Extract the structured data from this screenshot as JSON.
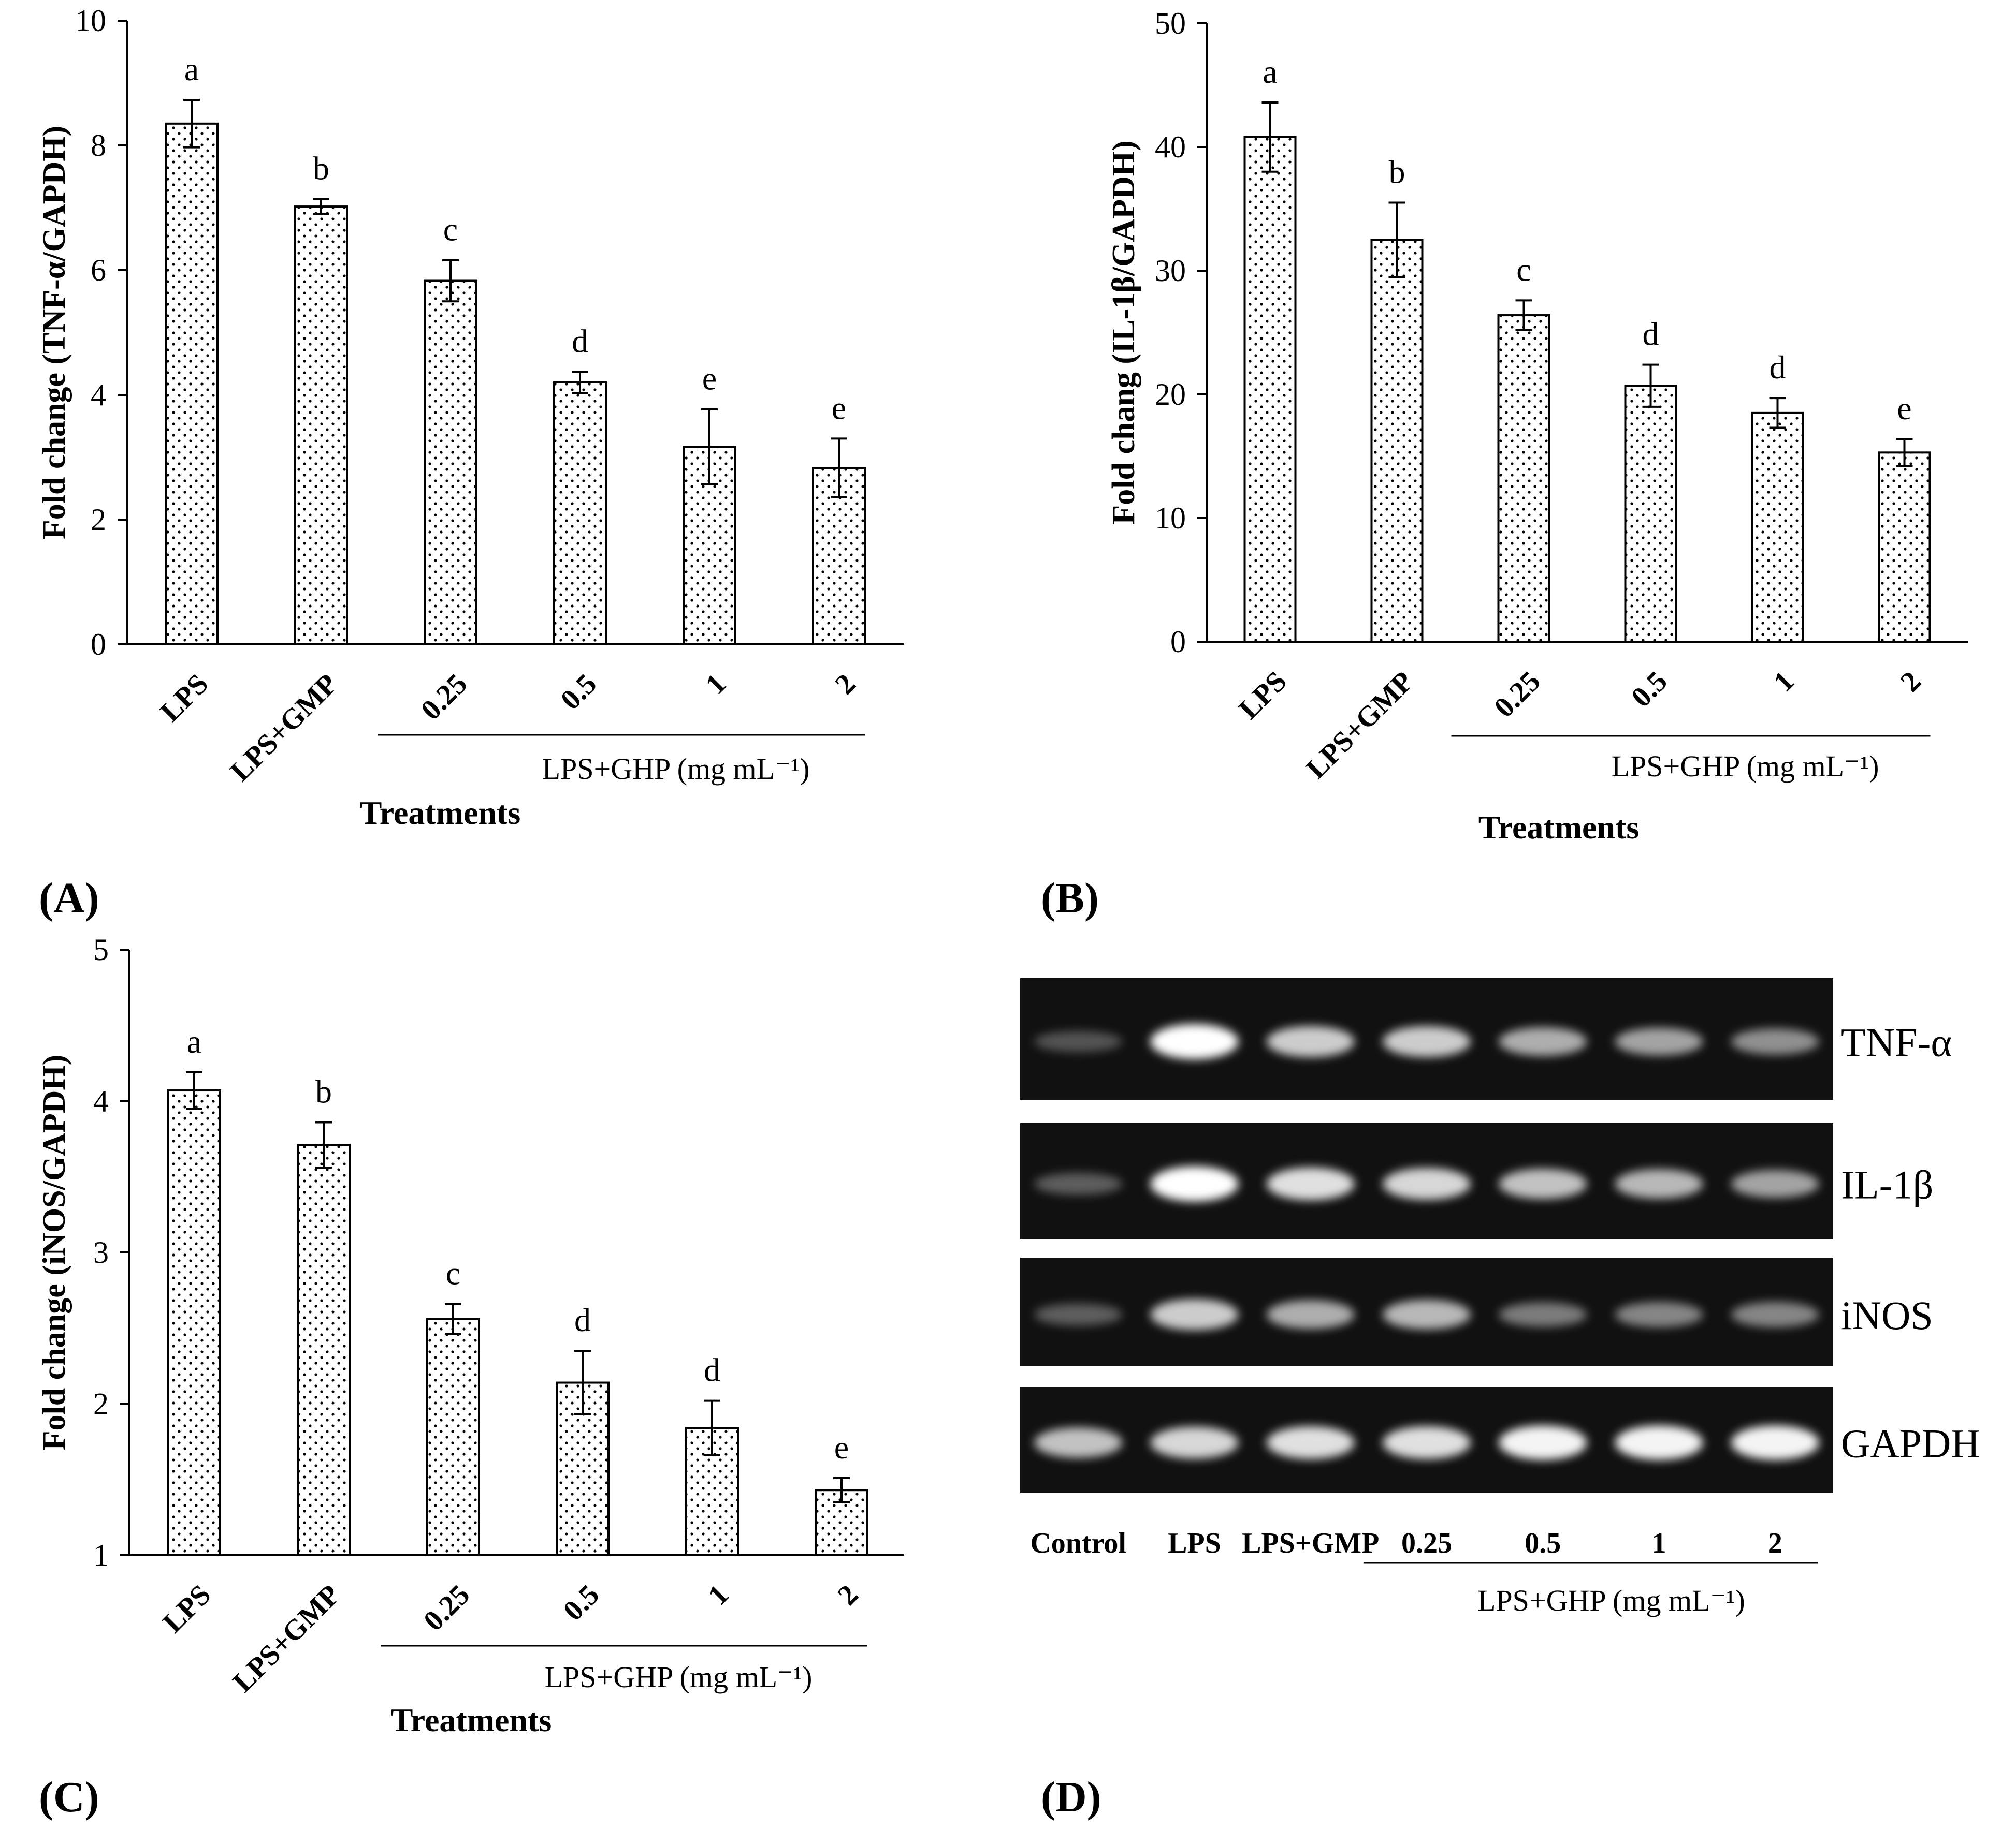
{
  "colors": {
    "bar_fill": "#ffffff",
    "bar_stroke": "#000000",
    "dot_pattern": "#000000",
    "gel_background": "#111111",
    "gel_band": "#ffffff"
  },
  "chart_data": [
    {
      "panel": "(A)",
      "type": "bar",
      "ylabel": "Fold change (TNF-α/GAPDH)",
      "xlabel": "Treatments",
      "categories": [
        "LPS",
        "LPS+GMP",
        "0.25",
        "0.5",
        "1",
        "2"
      ],
      "group_label": "LPS+GHP (mg mL⁻¹)",
      "values": [
        8.35,
        7.02,
        5.83,
        4.2,
        3.17,
        2.83
      ],
      "errors": [
        0.38,
        0.12,
        0.33,
        0.17,
        0.6,
        0.47
      ],
      "letters": [
        "a",
        "b",
        "c",
        "d",
        "e",
        "e"
      ],
      "ylim": [
        0,
        10
      ],
      "yticks": [
        0,
        2,
        4,
        6,
        8,
        10
      ],
      "pattern": "dotted"
    },
    {
      "panel": "(B)",
      "type": "bar",
      "ylabel": "Fold chang  (IL-1β/GAPDH)",
      "xlabel": "Treatments",
      "categories": [
        "LPS",
        "LPS+GMP",
        "0.25",
        "0.5",
        "1",
        "2"
      ],
      "group_label": "LPS+GHP (mg mL⁻¹)",
      "values": [
        40.8,
        32.5,
        26.4,
        20.7,
        18.5,
        15.3
      ],
      "errors": [
        2.8,
        3.0,
        1.2,
        1.7,
        1.2,
        1.1
      ],
      "letters": [
        "a",
        "b",
        "c",
        "d",
        "d",
        "e"
      ],
      "ylim": [
        0,
        50
      ],
      "yticks": [
        0,
        10,
        20,
        30,
        40,
        50
      ],
      "pattern": "dotted"
    },
    {
      "panel": "(C)",
      "type": "bar",
      "ylabel": "Fold change (iNOS/GAPDH)",
      "xlabel": "Treatments",
      "categories": [
        "LPS",
        "LPS+GMP",
        "0.25",
        "0.5",
        "1",
        "2"
      ],
      "group_label": "LPS+GHP (mg mL⁻¹)",
      "values": [
        4.07,
        3.71,
        2.56,
        2.14,
        1.84,
        1.43
      ],
      "errors": [
        0.12,
        0.15,
        0.1,
        0.21,
        0.18,
        0.08
      ],
      "letters": [
        "a",
        "b",
        "c",
        "d",
        "d",
        "e"
      ],
      "ylim": [
        1,
        5
      ],
      "yticks": [
        1,
        2,
        3,
        4,
        5
      ],
      "pattern": "dotted"
    }
  ],
  "gel": {
    "panel": "(D)",
    "rows": [
      "TNF-α",
      "IL-1β",
      "iNOS",
      "GAPDH"
    ],
    "lanes": [
      "Control",
      "LPS",
      "LPS+GMP",
      "0.25",
      "0.5",
      "1",
      "2"
    ],
    "group_label": "LPS+GHP (mg mL⁻¹)",
    "intensities": [
      [
        0.15,
        1.0,
        0.75,
        0.75,
        0.6,
        0.55,
        0.45
      ],
      [
        0.2,
        1.0,
        0.85,
        0.8,
        0.7,
        0.65,
        0.55
      ],
      [
        0.2,
        0.75,
        0.6,
        0.65,
        0.35,
        0.4,
        0.4
      ],
      [
        0.7,
        0.8,
        0.85,
        0.85,
        0.95,
        0.95,
        0.95
      ]
    ]
  }
}
